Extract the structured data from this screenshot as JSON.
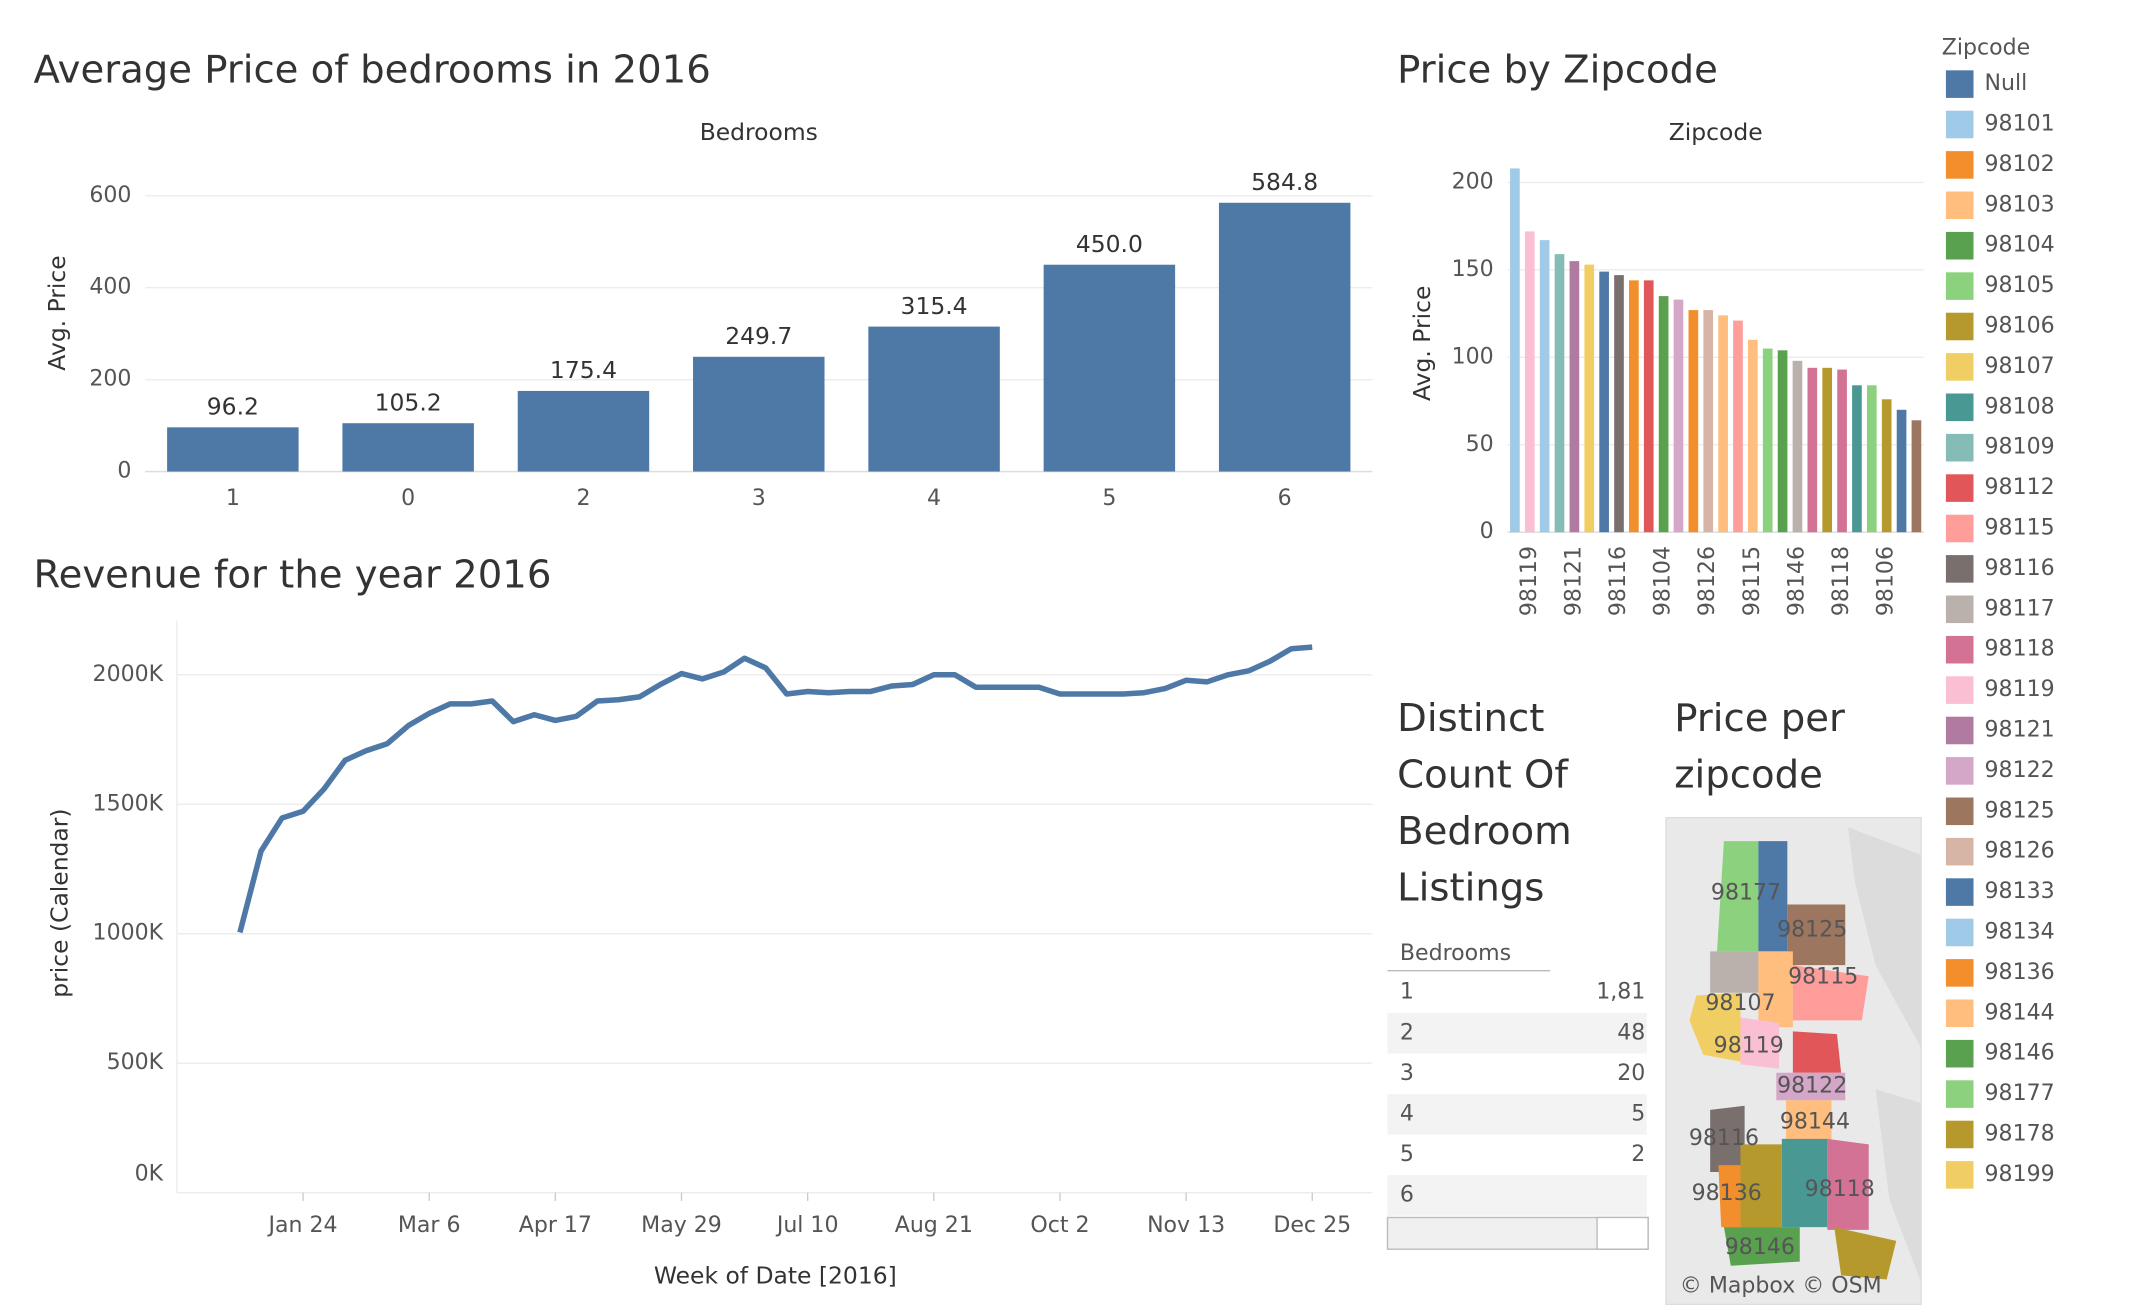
{
  "chart_data": [
    {
      "type": "bar",
      "title": "Average Price of bedrooms in 2016",
      "x_title": "Bedrooms",
      "y_title": "Avg. Price",
      "categories": [
        "1",
        "0",
        "2",
        "3",
        "4",
        "5",
        "6"
      ],
      "values": [
        96.2,
        105.2,
        175.4,
        249.7,
        315.4,
        450.0,
        584.8
      ],
      "value_labels": [
        "96.2",
        "105.2",
        "175.4",
        "249.7",
        "315.4",
        "450.0",
        "584.8"
      ],
      "color": "#4e79a7",
      "ylim": [
        0,
        690
      ],
      "yticks": [
        0,
        200,
        400,
        600
      ],
      "grid": true
    },
    {
      "type": "bar",
      "title": "Price by Zipcode",
      "x_title": "Zipcode",
      "y_title": "Avg. Price",
      "categories": [
        null,
        "98119",
        null,
        null,
        "98121",
        null,
        null,
        "98116",
        null,
        null,
        "98104",
        null,
        null,
        "98126",
        null,
        null,
        "98115",
        null,
        null,
        "98146",
        null,
        null,
        "98118",
        null,
        null,
        "98106",
        null,
        null
      ],
      "values": [
        208,
        172,
        167,
        159,
        155,
        153,
        149,
        147,
        144,
        144,
        135,
        133,
        127,
        127,
        124,
        121,
        110,
        105,
        104,
        98,
        94,
        94,
        93,
        84,
        84,
        76,
        70,
        64
      ],
      "colors": [
        "#a0cbe8",
        "#fabfd2",
        "#a0cbe8",
        "#86bcb6",
        "#b07aa1",
        "#f1ce63",
        "#4e79a7",
        "#79706e",
        "#f28e2b",
        "#e15759",
        "#59a14f",
        "#d4a6c8",
        "#f28e2b",
        "#d7b5a6",
        "#ffbe7d",
        "#ff9d9a",
        "#ffbe7d",
        "#8cd17d",
        "#59a14f",
        "#bab0ac",
        "#d37295",
        "#b6992d",
        "#d37295",
        "#499894",
        "#8cd17d",
        "#b6992d",
        "#4e79a7",
        "#9d7660"
      ],
      "ylim": [
        0,
        216
      ],
      "yticks": [
        0,
        50,
        100,
        150,
        200
      ],
      "grid": true,
      "legend": {
        "title": "Zipcode",
        "items": [
          {
            "name": "Null",
            "color": "#4e79a7"
          },
          {
            "name": "98101",
            "color": "#a0cbe8"
          },
          {
            "name": "98102",
            "color": "#f28e2b"
          },
          {
            "name": "98103",
            "color": "#ffbe7d"
          },
          {
            "name": "98104",
            "color": "#59a14f"
          },
          {
            "name": "98105",
            "color": "#8cd17d"
          },
          {
            "name": "98106",
            "color": "#b6992d"
          },
          {
            "name": "98107",
            "color": "#f1ce63"
          },
          {
            "name": "98108",
            "color": "#499894"
          },
          {
            "name": "98109",
            "color": "#86bcb6"
          },
          {
            "name": "98112",
            "color": "#e15759"
          },
          {
            "name": "98115",
            "color": "#ff9d9a"
          },
          {
            "name": "98116",
            "color": "#79706e"
          },
          {
            "name": "98117",
            "color": "#bab0ac"
          },
          {
            "name": "98118",
            "color": "#d37295"
          },
          {
            "name": "98119",
            "color": "#fabfd2"
          },
          {
            "name": "98121",
            "color": "#b07aa1"
          },
          {
            "name": "98122",
            "color": "#d4a6c8"
          },
          {
            "name": "98125",
            "color": "#9d7660"
          },
          {
            "name": "98126",
            "color": "#d7b5a6"
          },
          {
            "name": "98133",
            "color": "#4e79a7"
          },
          {
            "name": "98134",
            "color": "#a0cbe8"
          },
          {
            "name": "98136",
            "color": "#f28e2b"
          },
          {
            "name": "98144",
            "color": "#ffbe7d"
          },
          {
            "name": "98146",
            "color": "#59a14f"
          },
          {
            "name": "98177",
            "color": "#8cd17d"
          },
          {
            "name": "98178",
            "color": "#b6992d"
          },
          {
            "name": "98199",
            "color": "#f1ce63"
          }
        ]
      }
    },
    {
      "type": "line",
      "title": "Revenue for the year 2016",
      "x_title": "Week of Date [2016]",
      "y_title": "price (Calendar)",
      "x": [
        "2016-01-03",
        "2016-01-10",
        "2016-01-17",
        "2016-01-24",
        "2016-01-31",
        "2016-02-07",
        "2016-02-14",
        "2016-02-21",
        "2016-02-28",
        "2016-03-06",
        "2016-03-13",
        "2016-03-20",
        "2016-03-27",
        "2016-04-03",
        "2016-04-10",
        "2016-04-17",
        "2016-04-24",
        "2016-05-01",
        "2016-05-08",
        "2016-05-15",
        "2016-05-22",
        "2016-05-29",
        "2016-06-05",
        "2016-06-12",
        "2016-06-19",
        "2016-06-26",
        "2016-07-03",
        "2016-07-10",
        "2016-07-17",
        "2016-07-24",
        "2016-07-31",
        "2016-08-07",
        "2016-08-14",
        "2016-08-21",
        "2016-08-28",
        "2016-09-04",
        "2016-09-11",
        "2016-09-18",
        "2016-09-25",
        "2016-10-02",
        "2016-10-09",
        "2016-10-16",
        "2016-10-23",
        "2016-10-30",
        "2016-11-06",
        "2016-11-13",
        "2016-11-20",
        "2016-11-27",
        "2016-12-04",
        "2016-12-11",
        "2016-12-18",
        "2016-12-25"
      ],
      "series": [
        {
          "name": "price (Calendar)",
          "color": "#4e79a7",
          "values": [
            1005000,
            1319000,
            1447000,
            1473000,
            1559000,
            1670000,
            1707000,
            1734000,
            1803000,
            1851000,
            1888000,
            1888000,
            1899000,
            1819000,
            1846000,
            1824000,
            1840000,
            1899000,
            1904000,
            1915000,
            1963000,
            2005000,
            1984000,
            2011000,
            2064000,
            2027000,
            1926000,
            1936000,
            1931000,
            1936000,
            1936000,
            1957000,
            1963000,
            2000000,
            2000000,
            1952000,
            1952000,
            1952000,
            1952000,
            1926000,
            1926000,
            1926000,
            1926000,
            1931000,
            1947000,
            1979000,
            1973000,
            2000000,
            2016000,
            2053000,
            2101000,
            2107000
          ]
        }
      ],
      "xlim": [
        "2015-12-13",
        "2017-01-14"
      ],
      "xticks": [
        {
          "value": "2016-01-24",
          "label": "Jan 24"
        },
        {
          "value": "2016-03-06",
          "label": "Mar 6"
        },
        {
          "value": "2016-04-17",
          "label": "Apr 17"
        },
        {
          "value": "2016-05-29",
          "label": "May 29"
        },
        {
          "value": "2016-07-10",
          "label": "Jul 10"
        },
        {
          "value": "2016-08-21",
          "label": "Aug 21"
        },
        {
          "value": "2016-10-02",
          "label": "Oct 2"
        },
        {
          "value": "2016-11-13",
          "label": "Nov 13"
        },
        {
          "value": "2016-12-25",
          "label": "Dec 25"
        }
      ],
      "ylim": [
        0,
        2210000
      ],
      "yticks": [
        {
          "value": 0,
          "label": "0K"
        },
        {
          "value": 500000,
          "label": "500K"
        },
        {
          "value": 1000000,
          "label": "1000K"
        },
        {
          "value": 1500000,
          "label": "1500K"
        },
        {
          "value": 2000000,
          "label": "2000K"
        }
      ],
      "grid": true
    },
    {
      "type": "table",
      "title_lines": [
        "Distinct",
        "Count Of",
        "Bedroom",
        "Listings"
      ],
      "header": "Bedrooms",
      "rows": [
        [
          "1",
          "1,81"
        ],
        [
          "2",
          "48"
        ],
        [
          "3",
          "20"
        ],
        [
          "4",
          "5"
        ],
        [
          "5",
          "2"
        ],
        [
          "6",
          null
        ]
      ]
    },
    {
      "type": "map",
      "title_lines": [
        "Price per",
        "zipcode"
      ],
      "labels": [
        "98177",
        "98125",
        "98115",
        "98107",
        "98119",
        "98122",
        "98144",
        "98116",
        "98136",
        "98118",
        "98146"
      ],
      "attribution": "© Mapbox © OSM"
    }
  ]
}
